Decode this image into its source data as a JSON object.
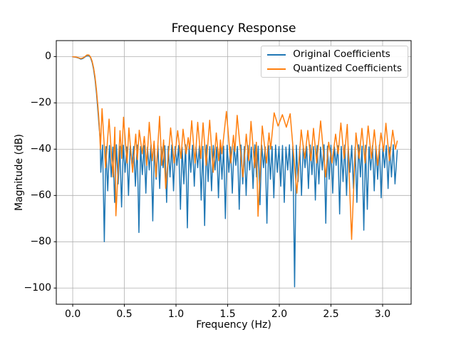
{
  "figure": {
    "background": "#ffffff"
  },
  "chart_data": {
    "type": "line",
    "title": "Frequency Response",
    "xlabel": "Frequency (Hz)",
    "ylabel": "Magnitude (dB)",
    "xlim": [
      -0.159,
      3.276
    ],
    "ylim": [
      -107,
      6.9
    ],
    "grid": true,
    "grid_color": "#b0b0b0",
    "spine_color": "#000000",
    "legend": {
      "position": "upper right"
    },
    "x_ticks": {
      "values": [
        0,
        0.5,
        1.0,
        1.5,
        2.0,
        2.5,
        3.0
      ],
      "labels": [
        "0.0",
        "0.5",
        "1.0",
        "1.5",
        "2.0",
        "2.5",
        "3.0"
      ]
    },
    "y_ticks": {
      "values": [
        0,
        -20,
        -40,
        -60,
        -80,
        -100
      ],
      "labels": [
        "0",
        "−20",
        "−40",
        "−60",
        "−80",
        "−100"
      ]
    },
    "series": [
      {
        "name": "Original Coefficients",
        "color": "#1f77b4",
        "points": [
          [
            0.0,
            -0.1
          ],
          [
            0.03,
            -0.25
          ],
          [
            0.055,
            -0.6
          ],
          [
            0.078,
            -1.1
          ],
          [
            0.098,
            -0.85
          ],
          [
            0.118,
            -0.2
          ],
          [
            0.138,
            0.4
          ],
          [
            0.158,
            0.4
          ],
          [
            0.172,
            -0.4
          ],
          [
            0.188,
            -2.5
          ],
          [
            0.202,
            -5.5
          ],
          [
            0.216,
            -9.8
          ],
          [
            0.23,
            -15.8
          ],
          [
            0.245,
            -24.0
          ],
          [
            0.258,
            -31.5
          ],
          [
            0.266,
            -36.0
          ],
          [
            0.272,
            -50
          ],
          [
            0.289,
            -38.2
          ],
          [
            0.306,
            -80
          ],
          [
            0.322,
            -38.9
          ],
          [
            0.339,
            -58
          ],
          [
            0.356,
            -38.4
          ],
          [
            0.373,
            -52
          ],
          [
            0.389,
            -39.1
          ],
          [
            0.406,
            -63
          ],
          [
            0.423,
            -38.1
          ],
          [
            0.44,
            -55
          ],
          [
            0.456,
            -38.7
          ],
          [
            0.473,
            -65
          ],
          [
            0.49,
            -38.3
          ],
          [
            0.507,
            -50
          ],
          [
            0.523,
            -39.0
          ],
          [
            0.54,
            -60
          ],
          [
            0.557,
            -38.5
          ],
          [
            0.574,
            -47
          ],
          [
            0.59,
            -38.8
          ],
          [
            0.607,
            -56
          ],
          [
            0.624,
            -38.2
          ],
          [
            0.641,
            -76
          ],
          [
            0.657,
            -38.9
          ],
          [
            0.674,
            -51
          ],
          [
            0.691,
            -38.4
          ],
          [
            0.708,
            -59
          ],
          [
            0.724,
            -39.1
          ],
          [
            0.741,
            -49
          ],
          [
            0.758,
            -38.1
          ],
          [
            0.775,
            -71
          ],
          [
            0.791,
            -38.7
          ],
          [
            0.808,
            -53
          ],
          [
            0.825,
            -38.3
          ],
          [
            0.842,
            -57
          ],
          [
            0.858,
            -39.0
          ],
          [
            0.875,
            -48
          ],
          [
            0.892,
            -38.5
          ],
          [
            0.909,
            -63
          ],
          [
            0.925,
            -38.8
          ],
          [
            0.942,
            -52
          ],
          [
            0.959,
            -38.2
          ],
          [
            0.976,
            -58
          ],
          [
            0.992,
            -38.9
          ],
          [
            1.009,
            -47
          ],
          [
            1.026,
            -38.4
          ],
          [
            1.043,
            -66
          ],
          [
            1.059,
            -39.1
          ],
          [
            1.076,
            -55
          ],
          [
            1.093,
            -38.1
          ],
          [
            1.11,
            -74
          ],
          [
            1.126,
            -38.7
          ],
          [
            1.143,
            -50
          ],
          [
            1.16,
            -38.3
          ],
          [
            1.177,
            -56
          ],
          [
            1.193,
            -39.0
          ],
          [
            1.21,
            -48
          ],
          [
            1.227,
            -38.5
          ],
          [
            1.244,
            -62
          ],
          [
            1.26,
            -38.8
          ],
          [
            1.277,
            -73
          ],
          [
            1.294,
            -38.2
          ],
          [
            1.311,
            -54
          ],
          [
            1.327,
            -38.9
          ],
          [
            1.344,
            -58
          ],
          [
            1.361,
            -38.4
          ],
          [
            1.378,
            -49
          ],
          [
            1.394,
            -39.1
          ],
          [
            1.411,
            -61
          ],
          [
            1.428,
            -38.1
          ],
          [
            1.445,
            -53
          ],
          [
            1.461,
            -38.7
          ],
          [
            1.478,
            -70
          ],
          [
            1.495,
            -38.3
          ],
          [
            1.512,
            -50
          ],
          [
            1.528,
            -39.0
          ],
          [
            1.545,
            -59
          ],
          [
            1.562,
            -38.5
          ],
          [
            1.579,
            -47
          ],
          [
            1.595,
            -38.8
          ],
          [
            1.612,
            -66
          ],
          [
            1.629,
            -38.2
          ],
          [
            1.646,
            -55
          ],
          [
            1.662,
            -38.9
          ],
          [
            1.679,
            -60
          ],
          [
            1.696,
            -38.4
          ],
          [
            1.713,
            -49
          ],
          [
            1.729,
            -39.1
          ],
          [
            1.746,
            -57
          ],
          [
            1.763,
            -38.1
          ],
          [
            1.78,
            -52
          ],
          [
            1.796,
            -38.7
          ],
          [
            1.813,
            -64
          ],
          [
            1.83,
            -38.3
          ],
          [
            1.847,
            -48
          ],
          [
            1.863,
            -39.0
          ],
          [
            1.88,
            -72
          ],
          [
            1.897,
            -38.5
          ],
          [
            1.914,
            -53
          ],
          [
            1.93,
            -38.8
          ],
          [
            1.947,
            -61
          ],
          [
            1.964,
            -38.2
          ],
          [
            1.981,
            -50
          ],
          [
            1.997,
            -38.9
          ],
          [
            2.014,
            -56
          ],
          [
            2.031,
            -38.4
          ],
          [
            2.048,
            -63
          ],
          [
            2.064,
            -39.1
          ],
          [
            2.081,
            -49
          ],
          [
            2.098,
            -38.1
          ],
          [
            2.115,
            -58
          ],
          [
            2.131,
            -38.7
          ],
          [
            2.148,
            -99.5
          ],
          [
            2.165,
            -38.3
          ],
          [
            2.182,
            -54
          ],
          [
            2.198,
            -39.0
          ],
          [
            2.215,
            -60
          ],
          [
            2.232,
            -38.5
          ],
          [
            2.249,
            -48
          ],
          [
            2.265,
            -38.8
          ],
          [
            2.282,
            -57
          ],
          [
            2.299,
            -38.2
          ],
          [
            2.316,
            -51
          ],
          [
            2.332,
            -38.9
          ],
          [
            2.349,
            -62
          ],
          [
            2.366,
            -38.4
          ],
          [
            2.383,
            -55
          ],
          [
            2.399,
            -39.1
          ],
          [
            2.416,
            -49
          ],
          [
            2.433,
            -38.1
          ],
          [
            2.45,
            -72
          ],
          [
            2.466,
            -38.7
          ],
          [
            2.483,
            -53
          ],
          [
            2.5,
            -38.3
          ],
          [
            2.517,
            -59
          ],
          [
            2.533,
            -39.0
          ],
          [
            2.55,
            -47
          ],
          [
            2.567,
            -38.5
          ],
          [
            2.584,
            -68
          ],
          [
            2.6,
            -38.8
          ],
          [
            2.617,
            -54
          ],
          [
            2.634,
            -38.2
          ],
          [
            2.651,
            -60
          ],
          [
            2.667,
            -38.9
          ],
          [
            2.684,
            -50
          ],
          [
            2.701,
            -38.4
          ],
          [
            2.718,
            -57
          ],
          [
            2.734,
            -39.1
          ],
          [
            2.751,
            -63
          ],
          [
            2.768,
            -38.1
          ],
          [
            2.785,
            -52
          ],
          [
            2.801,
            -38.7
          ],
          [
            2.818,
            -75
          ],
          [
            2.835,
            -38.3
          ],
          [
            2.852,
            -66
          ],
          [
            2.868,
            -39.0
          ],
          [
            2.885,
            -49
          ],
          [
            2.902,
            -38.5
          ],
          [
            2.919,
            -58
          ],
          [
            2.935,
            -38.8
          ],
          [
            2.952,
            -53
          ],
          [
            2.969,
            -38.2
          ],
          [
            2.986,
            -61
          ],
          [
            3.002,
            -38.9
          ],
          [
            3.019,
            -48
          ],
          [
            3.036,
            -38.4
          ],
          [
            3.053,
            -57
          ],
          [
            3.069,
            -39.1
          ],
          [
            3.086,
            -52
          ],
          [
            3.103,
            -38.1
          ],
          [
            3.12,
            -55
          ],
          [
            3.142,
            -40.5
          ]
        ]
      },
      {
        "name": "Quantized Coefficients",
        "color": "#ff7f0e",
        "points": [
          [
            0.0,
            -0.08
          ],
          [
            0.03,
            -0.18
          ],
          [
            0.055,
            -0.5
          ],
          [
            0.078,
            -0.85
          ],
          [
            0.098,
            -0.6
          ],
          [
            0.118,
            0.0
          ],
          [
            0.138,
            0.7
          ],
          [
            0.158,
            0.65
          ],
          [
            0.172,
            -0.15
          ],
          [
            0.188,
            -2.0
          ],
          [
            0.202,
            -4.8
          ],
          [
            0.216,
            -8.8
          ],
          [
            0.23,
            -14.5
          ],
          [
            0.245,
            -22.0
          ],
          [
            0.257,
            -29.5
          ],
          [
            0.268,
            -40
          ],
          [
            0.284,
            -22.5
          ],
          [
            0.318,
            -48
          ],
          [
            0.352,
            -27.0
          ],
          [
            0.39,
            -52
          ],
          [
            0.408,
            -30.5
          ],
          [
            0.418,
            -68.8
          ],
          [
            0.458,
            -32.0
          ],
          [
            0.474,
            -44
          ],
          [
            0.492,
            -26.2
          ],
          [
            0.526,
            -46
          ],
          [
            0.544,
            -30.8
          ],
          [
            0.58,
            -50
          ],
          [
            0.61,
            -33.5
          ],
          [
            0.626,
            -44.5
          ],
          [
            0.644,
            -31.8
          ],
          [
            0.673,
            -42
          ],
          [
            0.693,
            -34.5
          ],
          [
            0.716,
            -47
          ],
          [
            0.741,
            -28.4
          ],
          [
            0.77,
            -45
          ],
          [
            0.788,
            -36.5
          ],
          [
            0.806,
            -52
          ],
          [
            0.841,
            -25.8
          ],
          [
            0.862,
            -47
          ],
          [
            0.88,
            -36.0
          ],
          [
            0.9,
            -57
          ],
          [
            0.948,
            -30.8
          ],
          [
            0.982,
            -46
          ],
          [
            1.016,
            -32.0
          ],
          [
            1.048,
            -44
          ],
          [
            1.068,
            -31.4
          ],
          [
            1.098,
            -42
          ],
          [
            1.118,
            -35.0
          ],
          [
            1.132,
            -40
          ],
          [
            1.152,
            -27.7
          ],
          [
            1.184,
            -46
          ],
          [
            1.21,
            -28.4
          ],
          [
            1.24,
            -44
          ],
          [
            1.262,
            -28.6
          ],
          [
            1.292,
            -47
          ],
          [
            1.326,
            -27.5
          ],
          [
            1.36,
            -50
          ],
          [
            1.39,
            -33.0
          ],
          [
            1.414,
            -45
          ],
          [
            1.43,
            -36.0
          ],
          [
            1.444,
            -42
          ],
          [
            1.488,
            -23.7
          ],
          [
            1.53,
            -46
          ],
          [
            1.556,
            -34.0
          ],
          [
            1.57,
            -41
          ],
          [
            1.592,
            -25.4
          ],
          [
            1.648,
            -52
          ],
          [
            1.68,
            -33.5
          ],
          [
            1.704,
            -45
          ],
          [
            1.726,
            -28.0
          ],
          [
            1.762,
            -48
          ],
          [
            1.778,
            -37.0
          ],
          [
            1.794,
            -69
          ],
          [
            1.835,
            -30.0
          ],
          [
            1.876,
            -46
          ],
          [
            1.9,
            -33.0
          ],
          [
            1.916,
            -40
          ],
          [
            1.95,
            -24.3
          ],
          [
            1.988,
            -30.0
          ],
          [
            2.03,
            -25.1
          ],
          [
            2.068,
            -30.5
          ],
          [
            2.105,
            -24.7
          ],
          [
            2.17,
            -59
          ],
          [
            2.212,
            -31.7
          ],
          [
            2.246,
            -44
          ],
          [
            2.276,
            -31.9
          ],
          [
            2.306,
            -45
          ],
          [
            2.331,
            -31.0
          ],
          [
            2.362,
            -46
          ],
          [
            2.4,
            -27.8
          ],
          [
            2.448,
            -52
          ],
          [
            2.478,
            -37.0
          ],
          [
            2.51,
            -46
          ],
          [
            2.545,
            -33.5
          ],
          [
            2.57,
            -42
          ],
          [
            2.596,
            -28.7
          ],
          [
            2.628,
            -44
          ],
          [
            2.658,
            -29.3
          ],
          [
            2.7,
            -79
          ],
          [
            2.742,
            -33.0
          ],
          [
            2.772,
            -44
          ],
          [
            2.8,
            -31.0
          ],
          [
            2.83,
            -46
          ],
          [
            2.86,
            -30.0
          ],
          [
            2.892,
            -44
          ],
          [
            2.92,
            -31.6
          ],
          [
            2.952,
            -47
          ],
          [
            2.984,
            -33.0
          ],
          [
            3.01,
            -41
          ],
          [
            3.032,
            -28.8
          ],
          [
            3.066,
            -45
          ],
          [
            3.098,
            -31.8
          ],
          [
            3.124,
            -40
          ],
          [
            3.142,
            -36.5
          ]
        ]
      }
    ]
  }
}
